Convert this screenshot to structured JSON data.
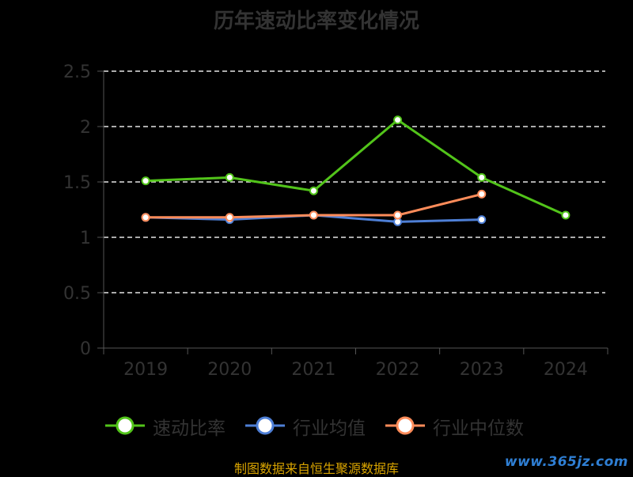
{
  "title": "历年速动比率变化情况",
  "source_text": "制图数据来自恒生聚源数据库",
  "watermark": "www.365jz.com",
  "chart_data": {
    "type": "line",
    "title": "历年速动比率变化情况",
    "xlabel": "",
    "ylabel": "",
    "categories": [
      "2019",
      "2020",
      "2021",
      "2022",
      "2023",
      "2024"
    ],
    "ylim": [
      0,
      2.5
    ],
    "yticks": [
      0,
      0.5,
      1,
      1.5,
      2,
      2.5
    ],
    "ytick_labels": [
      "0",
      "0.5",
      "1",
      "1.5",
      "2",
      "2.5"
    ],
    "grid": "horizontal-dashed",
    "legend_position": "bottom",
    "series": [
      {
        "name": "速动比率",
        "color": "#52c41a",
        "values": [
          1.51,
          1.54,
          1.42,
          2.06,
          1.54,
          1.2
        ]
      },
      {
        "name": "行业均值",
        "color": "#4e7fd6",
        "values": [
          1.18,
          1.16,
          1.2,
          1.14,
          1.16,
          null
        ]
      },
      {
        "name": "行业中位数",
        "color": "#ff8c5a",
        "values": [
          1.18,
          1.18,
          1.2,
          1.2,
          1.39,
          null
        ]
      }
    ]
  }
}
